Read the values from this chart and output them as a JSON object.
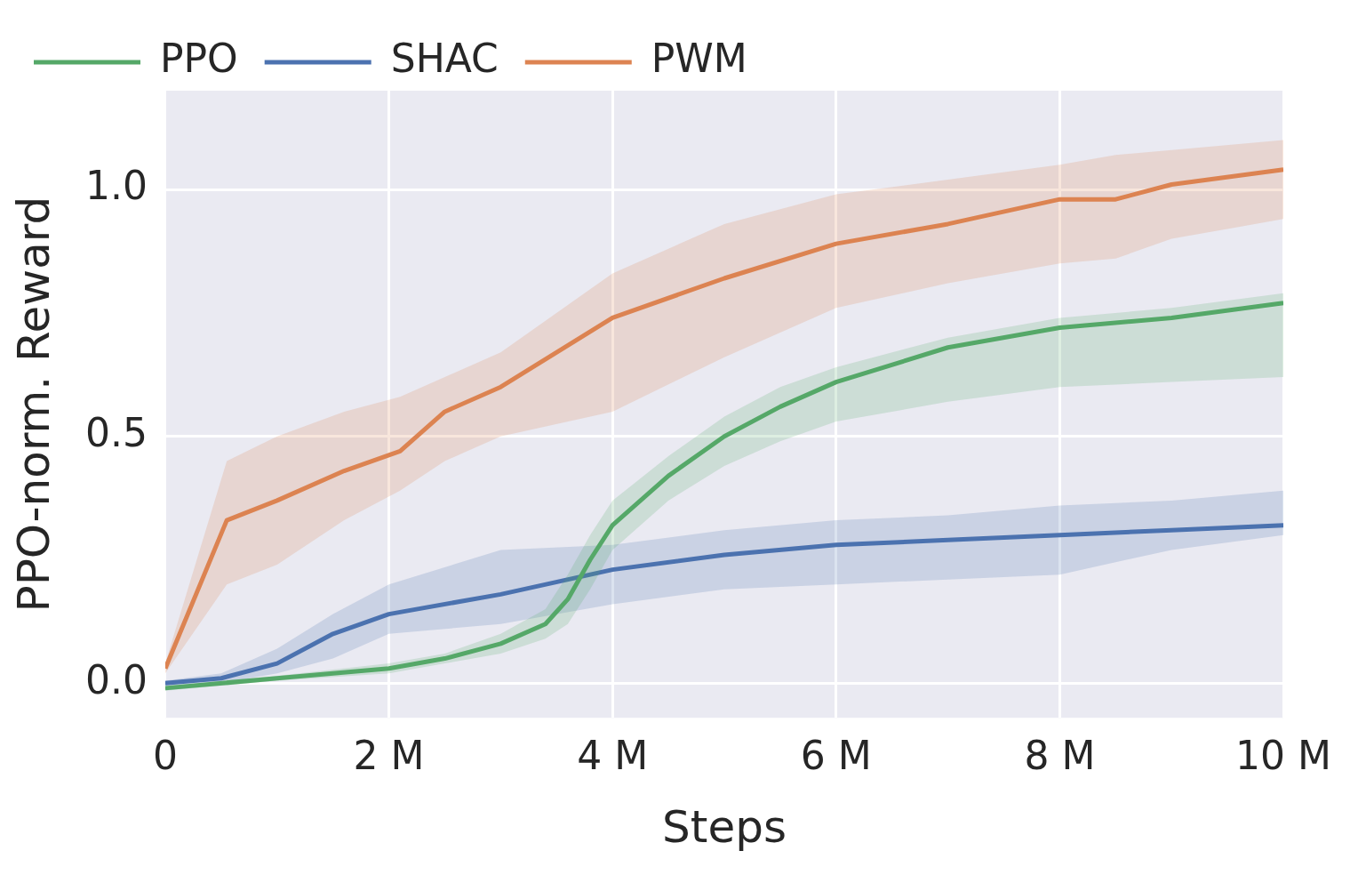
{
  "chart_data": {
    "type": "line",
    "xlabel": "Steps",
    "ylabel": "PPO-norm. Reward",
    "xlim": [
      0,
      10
    ],
    "ylim": [
      -0.07,
      1.2
    ],
    "xticks": [
      0,
      {
        "value": 2,
        "label": "2 M"
      },
      {
        "value": 4,
        "label": "4 M"
      },
      {
        "value": 6,
        "label": "6 M"
      },
      {
        "value": 8,
        "label": "8 M"
      },
      {
        "value": 10,
        "label": "10 M"
      }
    ],
    "yticks": [
      {
        "value": 0,
        "label": "0.0"
      },
      {
        "value": 0.5,
        "label": "0.5"
      },
      {
        "value": 1,
        "label": "1.0"
      }
    ],
    "grid": true,
    "legend": "top left",
    "series": [
      {
        "name": "PPO",
        "color": "#55a868",
        "x": [
          0,
          1,
          2,
          2.5,
          3,
          3.4,
          3.6,
          3.8,
          4,
          4.5,
          5,
          5.5,
          6,
          7,
          8,
          9,
          10
        ],
        "values": [
          -0.01,
          0.01,
          0.03,
          0.05,
          0.08,
          0.12,
          0.17,
          0.25,
          0.32,
          0.42,
          0.5,
          0.56,
          0.61,
          0.68,
          0.72,
          0.74,
          0.77
        ],
        "lower": [
          -0.015,
          0.005,
          0.02,
          0.04,
          0.06,
          0.09,
          0.12,
          0.19,
          0.27,
          0.37,
          0.44,
          0.49,
          0.53,
          0.57,
          0.6,
          0.61,
          0.62
        ],
        "upper": [
          -0.005,
          0.015,
          0.04,
          0.06,
          0.1,
          0.15,
          0.22,
          0.3,
          0.37,
          0.46,
          0.54,
          0.6,
          0.64,
          0.7,
          0.74,
          0.76,
          0.79
        ]
      },
      {
        "name": "SHAC",
        "color": "#4c72b0",
        "x": [
          0,
          0.5,
          1,
          1.5,
          2,
          3,
          4,
          5,
          6,
          7,
          8,
          9,
          10
        ],
        "values": [
          0,
          0.01,
          0.04,
          0.1,
          0.14,
          0.18,
          0.23,
          0.26,
          0.28,
          0.29,
          0.3,
          0.31,
          0.32
        ],
        "lower": [
          -0.005,
          0,
          0.02,
          0.05,
          0.1,
          0.12,
          0.16,
          0.19,
          0.2,
          0.21,
          0.22,
          0.27,
          0.3
        ],
        "upper": [
          0.005,
          0.02,
          0.07,
          0.14,
          0.2,
          0.27,
          0.28,
          0.31,
          0.33,
          0.34,
          0.36,
          0.37,
          0.39
        ]
      },
      {
        "name": "PWM",
        "color": "#dd8452",
        "x": [
          0,
          0.55,
          1,
          1.6,
          2.1,
          2.5,
          3,
          4,
          5,
          6,
          7,
          8,
          8.5,
          9,
          10
        ],
        "values": [
          0.03,
          0.33,
          0.37,
          0.43,
          0.47,
          0.55,
          0.6,
          0.74,
          0.82,
          0.89,
          0.93,
          0.98,
          0.98,
          1.01,
          1.04
        ],
        "lower": [
          0.02,
          0.2,
          0.24,
          0.33,
          0.39,
          0.45,
          0.5,
          0.55,
          0.66,
          0.76,
          0.81,
          0.85,
          0.86,
          0.9,
          0.94
        ],
        "upper": [
          0.04,
          0.45,
          0.5,
          0.55,
          0.58,
          0.62,
          0.67,
          0.83,
          0.93,
          0.99,
          1.02,
          1.05,
          1.07,
          1.08,
          1.1
        ]
      }
    ]
  }
}
